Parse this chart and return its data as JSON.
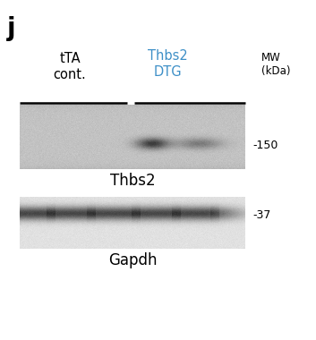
{
  "panel_label": "j",
  "panel_label_fontsize": 20,
  "panel_label_fontweight": "bold",
  "col1_label": "tTA\ncont.",
  "col2_label": "Thbs2\nDTG",
  "col1_color": "black",
  "col2_color": "#3d8fc7",
  "mw_label": "MW\n(kDa)",
  "mw_150": "-150",
  "mw_37": "-37",
  "blot1_label": "Thbs2",
  "blot2_label": "Gapdh",
  "bg_color": "#ffffff",
  "fig_width": 3.53,
  "fig_height": 3.8,
  "dpi": 100
}
